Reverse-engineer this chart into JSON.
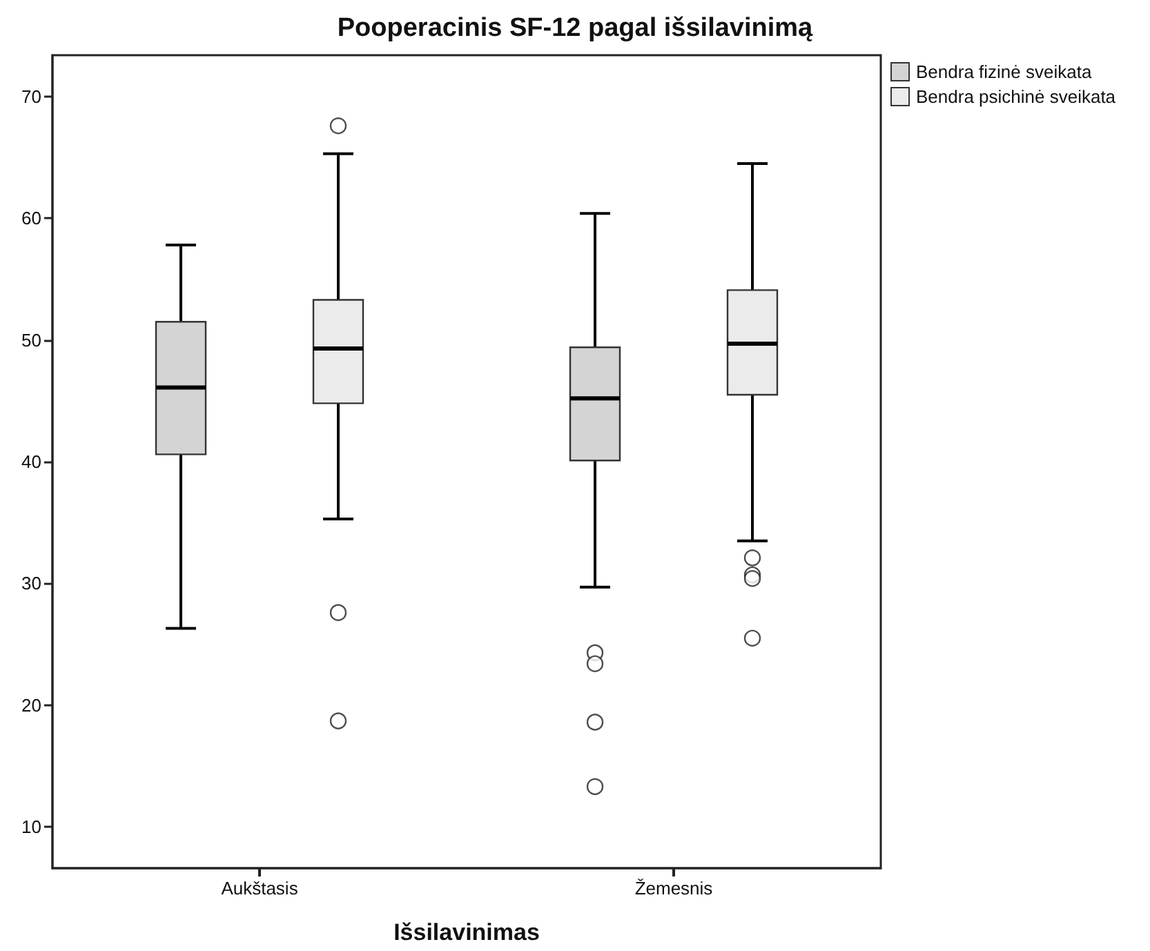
{
  "chart_data": {
    "type": "box",
    "title": "Pooperacinis SF-12 pagal išsilavinimą",
    "xlabel": "Išsilavinimas",
    "categories": [
      "Aukštasis",
      "Žemesnis"
    ],
    "series": [
      {
        "name": "Bendra fizinė sveikata",
        "color": "#d4d4d4",
        "boxes": [
          {
            "low": 26.3,
            "q1": 40.6,
            "median": 46.1,
            "q3": 51.5,
            "high": 57.8
          },
          {
            "low": 29.7,
            "q1": 40.1,
            "median": 45.2,
            "q3": 49.4,
            "high": 60.4,
            "outliers": [
              24.3,
              23.4,
              18.6,
              13.3
            ]
          }
        ]
      },
      {
        "name": "Bendra psichinė sveikata",
        "color": "#ebebeb",
        "boxes": [
          {
            "low": 35.3,
            "q1": 44.8,
            "median": 49.3,
            "q3": 53.3,
            "high": 65.3,
            "outliers": [
              67.6,
              27.6,
              18.7
            ]
          },
          {
            "low": 33.5,
            "q1": 45.5,
            "median": 49.7,
            "q3": 54.1,
            "high": 64.5,
            "outliers": [
              32.1,
              30.7,
              30.4,
              25.5
            ]
          }
        ]
      }
    ],
    "ylim": [
      6.6,
      73.4
    ],
    "yticks": [
      10,
      20,
      30,
      40,
      50,
      60,
      70
    ],
    "grid": false,
    "legend": "top right",
    "marker": "circle"
  }
}
